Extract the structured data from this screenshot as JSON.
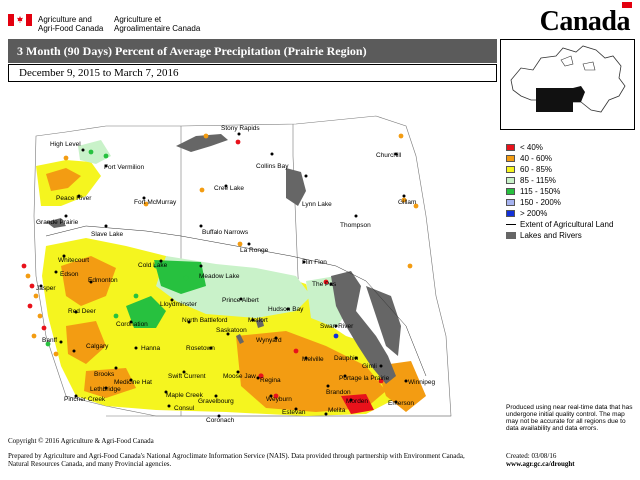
{
  "header": {
    "org_en_line1": "Agriculture and",
    "org_en_line2": "Agri-Food Canada",
    "org_fr_line1": "Agriculture et",
    "org_fr_line2": "Agroalimentaire Canada",
    "wordmark": "Canada"
  },
  "title": "3 Month (90 Days) Percent of Average Precipitation (Prairie Region)",
  "date_range": "December 9, 2015 to March 7, 2016",
  "colors": {
    "lt40": "#e8121b",
    "p40_60": "#f39c12",
    "p60_85": "#f5f51f",
    "p85_115": "#c9f2c9",
    "p115_150": "#27c13f",
    "p150_200": "#a6b3f0",
    "gt200": "#1230d8",
    "lakes": "#666666",
    "title_bar": "#5b5b5b"
  },
  "legend": {
    "items": [
      {
        "label": "< 40%",
        "color": "#e8121b"
      },
      {
        "label": "40 - 60%",
        "color": "#f39c12"
      },
      {
        "label": "60 - 85%",
        "color": "#f5f51f"
      },
      {
        "label": "85 - 115%",
        "color": "#c9f2c9"
      },
      {
        "label": "115 - 150%",
        "color": "#27c13f"
      },
      {
        "label": "150 - 200%",
        "color": "#a6b3f0"
      },
      {
        "label": "> 200%",
        "color": "#1230d8"
      }
    ],
    "ag_extent": "Extent of Agricultural Land",
    "lakes": "Lakes and Rivers"
  },
  "cities": {
    "stony_rapids": "Stony Rapids",
    "high_level": "High Level",
    "fort_vermilion": "Fort Vermilion",
    "collins_bay": "Collins Bay",
    "churchill": "Churchill",
    "cree_lake": "Cree Lake",
    "peace_river": "Peace River",
    "fort_mcmurray": "Fort McMurray",
    "lynn_lake": "Lynn Lake",
    "gillam": "Gillam",
    "grande_prairie": "Grande Prairie",
    "slave_lake": "Slave Lake",
    "buffalo_narrows": "Buffalo Narrows",
    "thompson": "Thompson",
    "whitecourt": "Whitecourt",
    "la_ronge": "La Ronge",
    "edson": "Edson",
    "cold_lake": "Cold Lake",
    "meadow_lake": "Meadow Lake",
    "flin_flon": "Flin Flon",
    "jasper": "Jasper",
    "edmonton": "Edmonton",
    "the_pas": "The Pas",
    "lloydminster": "Lloydminster",
    "prince_albert": "Prince Albert",
    "hudson_bay": "Hudson Bay",
    "red_deer": "Red Deer",
    "north_battleford": "North Battleford",
    "melfort": "Melfort",
    "coronation": "Coronation",
    "saskatoon": "Saskatoon",
    "swan_river": "Swan River",
    "banff": "Banff",
    "calgary": "Calgary",
    "hanna": "Hanna",
    "rosetown": "Rosetown",
    "wynyard": "Wynyard",
    "dauphin": "Dauphin",
    "gimli": "Gimli",
    "brooks": "Brooks",
    "melville": "Melville",
    "swift_current": "Swift Current",
    "moose_jaw": "Moose Jaw",
    "medicine_hat": "Medicine Hat",
    "regina": "Regina",
    "portage": "Portage la Prairie",
    "winnipeg": "Winnipeg",
    "lethbridge": "Lethbridge",
    "brandon": "Brandon",
    "pincher_creek": "Pincher Creek",
    "maple_creek": "Maple Creek",
    "gravelbourg": "Gravelbourg",
    "weyburn": "Weyburn",
    "morden": "Morden",
    "emerson": "Emerson",
    "consul": "Consul",
    "estevan": "Estevan",
    "melita": "Melita",
    "coronach": "Coronach"
  },
  "disclaimer": "Produced using near real-time data that has undergone initial quality control. The map may not be accurate for all regions due to data availability and data errors.",
  "copyright": "Copyright © 2016 Agriculture & Agri-Food Canada",
  "prepared_by": "Prepared by Agriculture and Agri-Food Canada's National Agroclimate Information Service (NAIS). Data provided through partnership with Environment Canada, Natural Resources Canada, and many Provincial agencies.",
  "created": "Created: 03/08/16",
  "website": "www.agr.gc.ca/drought"
}
